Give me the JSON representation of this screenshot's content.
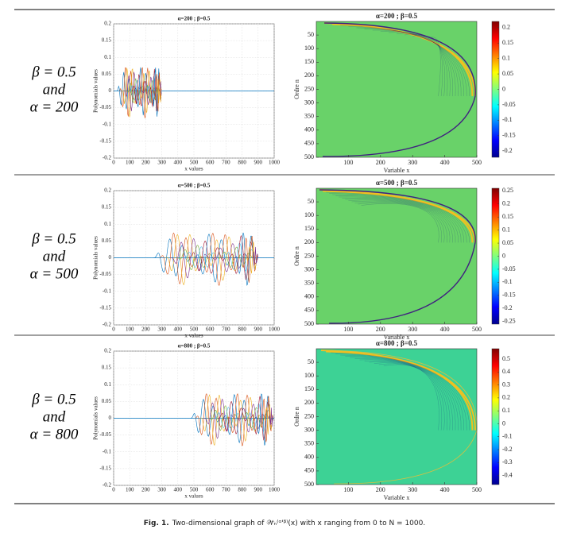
{
  "rows": [
    {
      "label": [
        "β = 0.5",
        "and",
        "α = 200"
      ],
      "line_plot": {
        "type": "line",
        "title": "α=200 ; β=0.5",
        "x_label": "x values",
        "y_label": "Polynomials values",
        "xlim": [
          0,
          1000
        ],
        "ylim": [
          -0.2,
          0.2
        ],
        "xticks": [
          0,
          100,
          200,
          300,
          400,
          500,
          600,
          700,
          800,
          900,
          1000
        ],
        "yticks": [
          -0.2,
          -0.15,
          -0.1,
          -0.05,
          0,
          0.05,
          0.1,
          0.15,
          0.2
        ],
        "grid": true
      },
      "heatmap": {
        "type": "heatmap",
        "title": "α=200 ; β=0.5",
        "x_label": "Variable x",
        "y_label": "Ordre n",
        "xlim": [
          0,
          500
        ],
        "ylim": [
          0,
          500
        ],
        "xticks": [
          100,
          200,
          300,
          400,
          500
        ],
        "yticks": [
          50,
          100,
          150,
          200,
          250,
          300,
          350,
          400,
          450,
          500
        ],
        "colorbar_lim": [
          -0.22,
          0.22
        ],
        "colorbar_ticks": [
          0.2,
          0.15,
          0.1,
          0.05,
          0,
          -0.05,
          -0.1,
          -0.15,
          -0.2
        ]
      }
    },
    {
      "label": [
        "β = 0.5",
        "and",
        "α = 500"
      ],
      "line_plot": {
        "type": "line",
        "title": "α=500 ; β=0.5",
        "x_label": "x values",
        "y_label": "Polynomials values",
        "xlim": [
          0,
          1000
        ],
        "ylim": [
          -0.2,
          0.2
        ],
        "xticks": [
          0,
          100,
          200,
          300,
          400,
          500,
          600,
          700,
          800,
          900,
          1000
        ],
        "yticks": [
          -0.2,
          -0.15,
          -0.1,
          -0.05,
          0,
          0.05,
          0.1,
          0.15,
          0.2
        ],
        "grid": true
      },
      "heatmap": {
        "type": "heatmap",
        "title": "α=500 ; β=0.5",
        "x_label": "Variable x",
        "y_label": "Ordre n",
        "xlim": [
          0,
          500
        ],
        "ylim": [
          0,
          500
        ],
        "xticks": [
          100,
          200,
          300,
          400,
          500
        ],
        "yticks": [
          50,
          100,
          150,
          200,
          250,
          300,
          350,
          400,
          450,
          500
        ],
        "colorbar_lim": [
          -0.26,
          0.26
        ],
        "colorbar_ticks": [
          0.25,
          0.2,
          0.15,
          0.1,
          0.05,
          0,
          -0.05,
          -0.1,
          -0.15,
          -0.2,
          -0.25
        ]
      }
    },
    {
      "label": [
        "β = 0.5",
        "and",
        "α = 800"
      ],
      "line_plot": {
        "type": "line",
        "title": "α=800 ; β=0.5",
        "x_label": "x values",
        "y_label": "Polynomials values",
        "xlim": [
          0,
          1000
        ],
        "ylim": [
          -0.2,
          0.2
        ],
        "xticks": [
          0,
          100,
          200,
          300,
          400,
          500,
          600,
          700,
          800,
          900,
          1000
        ],
        "yticks": [
          -0.2,
          -0.15,
          -0.1,
          -0.05,
          0,
          0.05,
          0.1,
          0.15,
          0.2
        ],
        "grid": true
      },
      "heatmap": {
        "type": "heatmap",
        "title": "α=800 ; β=0.5",
        "x_label": "Variable x",
        "y_label": "Ordre n",
        "xlim": [
          0,
          500
        ],
        "ylim": [
          0,
          500
        ],
        "xticks": [
          100,
          200,
          300,
          400,
          500
        ],
        "yticks": [
          50,
          100,
          150,
          200,
          250,
          300,
          350,
          400,
          450,
          500
        ],
        "colorbar_lim": [
          -0.47,
          0.58
        ],
        "colorbar_ticks": [
          0.5,
          0.4,
          0.3,
          0.2,
          0.1,
          0,
          -0.1,
          -0.2,
          -0.3,
          -0.4
        ]
      }
    }
  ],
  "caption": {
    "label": "Fig. 1.",
    "text": "Two-dimensional graph of 𝒲̃ₙ⁽ᵅ'ᵝ⁾(x) with x ranging from 0 to N = 1000."
  }
}
